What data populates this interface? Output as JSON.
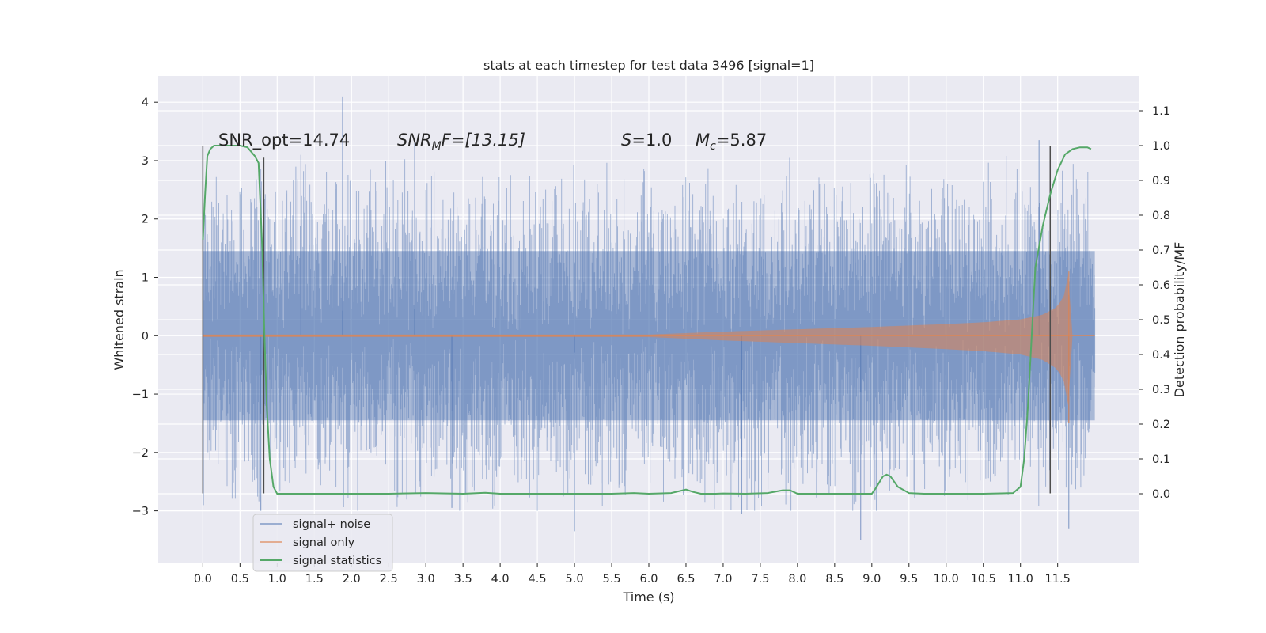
{
  "chart_data": {
    "type": "line",
    "title": "stats at each timestep for test data 3496 [signal=1]",
    "xlabel": "Time (s)",
    "ylabel": "Whitened strain",
    "ylabel_right": "Detection probability/MF",
    "xlim": [
      -0.6,
      12.6
    ],
    "ylim": [
      -3.9,
      4.45
    ],
    "ylim_right": [
      -0.2,
      1.2
    ],
    "x_ticks": [
      "0.0",
      "0.5",
      "1.0",
      "1.5",
      "2.0",
      "2.5",
      "3.0",
      "3.5",
      "4.0",
      "4.5",
      "5.0",
      "5.5",
      "6.0",
      "6.5",
      "7.0",
      "7.5",
      "8.0",
      "8.5",
      "9.0",
      "9.5",
      "10.0",
      "10.5",
      "11.0",
      "11.5"
    ],
    "y_ticks": [
      -3,
      -2,
      -1,
      0,
      1,
      2,
      3,
      4
    ],
    "y_ticks_right": [
      "0.0",
      "0.1",
      "0.2",
      "0.3",
      "0.4",
      "0.5",
      "0.6",
      "0.7",
      "0.8",
      "0.9",
      "1.0",
      "1.1"
    ],
    "annotations": {
      "snr_opt": "SNR_opt=14.74",
      "snr_mf_name": "SNR",
      "snr_mf_sub": "M",
      "snr_mf_rest": "F=[13.15]",
      "s_name": "S",
      "s_value": "=1.0",
      "mc_name": "M",
      "mc_sub": "c",
      "mc_value": "=5.87"
    },
    "legend": {
      "position": "lower-left",
      "entries": [
        {
          "label": "signal+ noise",
          "color": "#4c72b0"
        },
        {
          "label": "signal only",
          "color": "#dd8452"
        },
        {
          "label": "signal statistics",
          "color": "#55a868"
        }
      ]
    },
    "noise_envelope": {
      "x": [
        0.0,
        1.0,
        2.0,
        3.0,
        4.0,
        5.0,
        6.0,
        7.0,
        8.0,
        9.0,
        10.0,
        11.0,
        11.5,
        12.0
      ],
      "upper": [
        2.0,
        2.1,
        2.2,
        2.1,
        2.0,
        2.1,
        2.1,
        2.0,
        2.1,
        2.0,
        2.1,
        2.2,
        2.1,
        2.0
      ],
      "lower": [
        -2.0,
        -2.2,
        -2.1,
        -2.2,
        -2.1,
        -2.2,
        -2.1,
        -2.2,
        -2.1,
        -2.2,
        -2.2,
        -2.1,
        -2.1,
        -1.9
      ],
      "spikes": [
        {
          "x": 1.88,
          "y": 4.1
        },
        {
          "x": 11.25,
          "y": 3.35
        },
        {
          "x": 1.32,
          "y": 3.1
        },
        {
          "x": 2.85,
          "y": 3.3
        },
        {
          "x": 0.78,
          "y": -3.0
        },
        {
          "x": 5.0,
          "y": -3.35
        },
        {
          "x": 8.85,
          "y": -3.5
        },
        {
          "x": 11.65,
          "y": -3.3
        },
        {
          "x": 3.35,
          "y": -2.95
        },
        {
          "x": 7.25,
          "y": -3.05
        }
      ]
    },
    "signal_only_envelope": {
      "x": [
        0.0,
        6.0,
        7.0,
        8.0,
        9.0,
        10.0,
        10.5,
        11.0,
        11.3,
        11.5,
        11.6,
        11.65,
        11.7
      ],
      "amp": [
        0.02,
        0.02,
        0.07,
        0.11,
        0.15,
        0.2,
        0.23,
        0.28,
        0.36,
        0.5,
        0.72,
        1.1,
        0.0
      ],
      "tail_end": 12.0
    },
    "series": [
      {
        "name": "signal statistics",
        "axis": "right",
        "x": [
          0.0,
          0.03,
          0.06,
          0.1,
          0.15,
          0.2,
          0.3,
          0.4,
          0.5,
          0.6,
          0.7,
          0.75,
          0.8,
          0.83,
          0.86,
          0.9,
          0.95,
          1.0,
          1.1,
          1.5,
          2.0,
          2.5,
          3.0,
          3.5,
          3.8,
          4.0,
          4.5,
          5.0,
          5.5,
          5.8,
          6.0,
          6.3,
          6.5,
          6.6,
          6.7,
          6.9,
          7.0,
          7.3,
          7.6,
          7.8,
          7.9,
          8.0,
          8.1,
          8.5,
          9.0,
          9.05,
          9.15,
          9.2,
          9.25,
          9.35,
          9.5,
          9.7,
          10.0,
          10.5,
          10.9,
          11.0,
          11.05,
          11.1,
          11.15,
          11.2,
          11.3,
          11.4,
          11.5,
          11.6,
          11.7,
          11.8,
          11.9,
          11.95
        ],
        "values": [
          0.73,
          0.86,
          0.97,
          0.99,
          1.0,
          1.0,
          1.0,
          1.0,
          1.0,
          0.995,
          0.97,
          0.95,
          0.7,
          0.45,
          0.25,
          0.1,
          0.02,
          0.0,
          0.0,
          0.0,
          0.0,
          0.0,
          0.002,
          0.0,
          0.003,
          0.0,
          0.0,
          0.0,
          0.0,
          0.002,
          0.0,
          0.002,
          0.012,
          0.005,
          0.0,
          0.0,
          0.001,
          0.0,
          0.002,
          0.01,
          0.01,
          0.0,
          0.0,
          0.0,
          0.0,
          0.015,
          0.05,
          0.055,
          0.05,
          0.02,
          0.002,
          0.0,
          0.0,
          0.0,
          0.002,
          0.02,
          0.1,
          0.25,
          0.45,
          0.65,
          0.77,
          0.86,
          0.93,
          0.975,
          0.99,
          0.995,
          0.995,
          0.99
        ]
      }
    ],
    "vertical_markers": [
      {
        "x": 0.0,
        "y_top": 3.25,
        "y_bottom": -2.7
      },
      {
        "x": 0.82,
        "y_top": 3.05,
        "y_bottom": -2.7
      },
      {
        "x": 11.4,
        "y_top": 3.25,
        "y_bottom": -2.7
      }
    ],
    "grid": true
  }
}
